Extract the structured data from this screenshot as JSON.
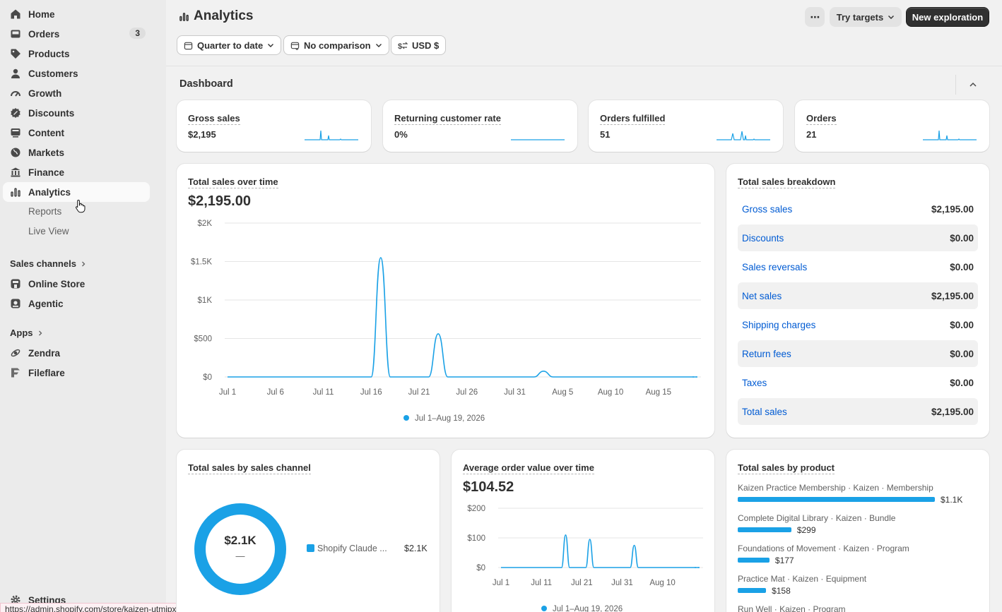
{
  "sidebar": {
    "items": [
      {
        "label": "Home",
        "icon": "home-icon"
      },
      {
        "label": "Orders",
        "icon": "orders-icon",
        "badge": "3"
      },
      {
        "label": "Products",
        "icon": "tag-icon"
      },
      {
        "label": "Customers",
        "icon": "person-icon"
      },
      {
        "label": "Growth",
        "icon": "gauge-icon"
      },
      {
        "label": "Discounts",
        "icon": "discount-icon"
      },
      {
        "label": "Content",
        "icon": "content-icon"
      },
      {
        "label": "Markets",
        "icon": "globe-icon"
      },
      {
        "label": "Finance",
        "icon": "bank-icon"
      },
      {
        "label": "Analytics",
        "icon": "analytics-icon"
      }
    ],
    "sub_items": [
      "Reports",
      "Live View"
    ],
    "sales_channels_label": "Sales channels",
    "channels": [
      {
        "label": "Online Store",
        "icon": "store-icon"
      },
      {
        "label": "Agentic",
        "icon": "agentic-icon"
      }
    ],
    "apps_label": "Apps",
    "apps": [
      {
        "label": "Zendra",
        "icon": "zendra-icon"
      },
      {
        "label": "Fileflare",
        "icon": "fileflare-icon"
      }
    ],
    "settings_label": "Settings",
    "status_url": "https://admin.shopify.com/store/kaizen-utmipxhq/analytics"
  },
  "header": {
    "title": "Analytics",
    "more_label": "⋯",
    "try_targets": "Try targets",
    "new_exploration": "New exploration",
    "filters": {
      "date": "Quarter to date",
      "comparison": "No comparison",
      "currency": "USD $"
    }
  },
  "dashboard": {
    "title": "Dashboard",
    "kpis": [
      {
        "label": "Gross sales",
        "value": "$2,195"
      },
      {
        "label": "Returning customer rate",
        "value": "0%"
      },
      {
        "label": "Orders fulfilled",
        "value": "51"
      },
      {
        "label": "Orders",
        "value": "21"
      }
    ],
    "total_sales": {
      "title": "Total sales over time",
      "value": "$2,195.00",
      "legend": "Jul 1–Aug 19, 2026"
    },
    "breakdown": {
      "title": "Total sales breakdown",
      "rows": [
        {
          "label": "Gross sales",
          "value": "$2,195.00"
        },
        {
          "label": "Discounts",
          "value": "$0.00"
        },
        {
          "label": "Sales reversals",
          "value": "$0.00"
        },
        {
          "label": "Net sales",
          "value": "$2,195.00"
        },
        {
          "label": "Shipping charges",
          "value": "$0.00"
        },
        {
          "label": "Return fees",
          "value": "$0.00"
        },
        {
          "label": "Taxes",
          "value": "$0.00"
        },
        {
          "label": "Total sales",
          "value": "$2,195.00"
        }
      ]
    },
    "by_channel": {
      "title": "Total sales by sales channel",
      "center_value": "$2.1K",
      "center_sub": "—",
      "legend_name": "Shopify Claude ...",
      "legend_value": "$2.1K"
    },
    "aov": {
      "title": "Average order value over time",
      "value": "$104.52",
      "legend": "Jul 1–Aug 19, 2026"
    },
    "by_product": {
      "title": "Total sales by product",
      "items": [
        {
          "name": "Kaizen Practice Membership · Kaizen · Membership",
          "value": "$1.1K",
          "amount": 1100
        },
        {
          "name": "Complete Digital Library · Kaizen · Bundle",
          "value": "$299",
          "amount": 299
        },
        {
          "name": "Foundations of Movement · Kaizen · Program",
          "value": "$177",
          "amount": 177
        },
        {
          "name": "Practice Mat · Kaizen · Equipment",
          "value": "$158",
          "amount": 158
        },
        {
          "name": "Run Well · Kaizen · Program",
          "value": "",
          "amount": 0
        }
      ]
    }
  },
  "colors": {
    "series": "#1aa1e6",
    "link": "#005bd3",
    "primary_button": "#303030"
  },
  "chart_data": [
    {
      "type": "line",
      "title": "Total sales over time",
      "x_ticks": [
        "Jul 1",
        "Jul 6",
        "Jul 11",
        "Jul 16",
        "Jul 21",
        "Jul 26",
        "Jul 31",
        "Aug 5",
        "Aug 10",
        "Aug 15"
      ],
      "y_ticks": [
        "$0",
        "$500",
        "$1K",
        "$1.5K",
        "$2K"
      ],
      "ylim": [
        0,
        2000
      ],
      "series": [
        {
          "name": "Jul 1–Aug 19, 2026",
          "points": [
            [
              "Jul 1",
              0
            ],
            [
              "Jul 16",
              0
            ],
            [
              "Jul 17",
              1550
            ],
            [
              "Jul 18",
              0
            ],
            [
              "Jul 22",
              0
            ],
            [
              "Jul 23",
              560
            ],
            [
              "Jul 24",
              0
            ],
            [
              "Aug 2",
              0
            ],
            [
              "Aug 3",
              75
            ],
            [
              "Aug 4",
              0
            ],
            [
              "Aug 19",
              0
            ]
          ]
        }
      ],
      "grid": true,
      "legend": "bottom-center"
    },
    {
      "type": "line",
      "title": "Average order value over time",
      "x_ticks": [
        "Jul 1",
        "Jul 11",
        "Jul 21",
        "Jul 31",
        "Aug 10"
      ],
      "y_ticks": [
        "$0",
        "$100",
        "$200"
      ],
      "ylim": [
        0,
        200
      ],
      "series": [
        {
          "name": "Jul 1–Aug 19, 2026",
          "points": [
            [
              "Jul 1",
              0
            ],
            [
              "Jul 16",
              0
            ],
            [
              "Jul 17",
              110
            ],
            [
              "Jul 18",
              0
            ],
            [
              "Jul 22",
              0
            ],
            [
              "Jul 23",
              95
            ],
            [
              "Jul 24",
              0
            ],
            [
              "Aug 2",
              0
            ],
            [
              "Aug 3",
              75
            ],
            [
              "Aug 4",
              0
            ],
            [
              "Aug 19",
              0
            ]
          ]
        }
      ],
      "grid": true,
      "legend": "bottom-center"
    },
    {
      "type": "pie",
      "title": "Total sales by sales channel",
      "series": [
        {
          "name": "Shopify Claude ...",
          "values": [
            2100
          ]
        }
      ]
    },
    {
      "type": "bar",
      "title": "Total sales by product",
      "categories": [
        "Kaizen Practice Membership · Kaizen · Membership",
        "Complete Digital Library · Kaizen · Bundle",
        "Foundations of Movement · Kaizen · Program",
        "Practice Mat · Kaizen · Equipment"
      ],
      "values": [
        1100,
        299,
        177,
        158
      ]
    }
  ]
}
